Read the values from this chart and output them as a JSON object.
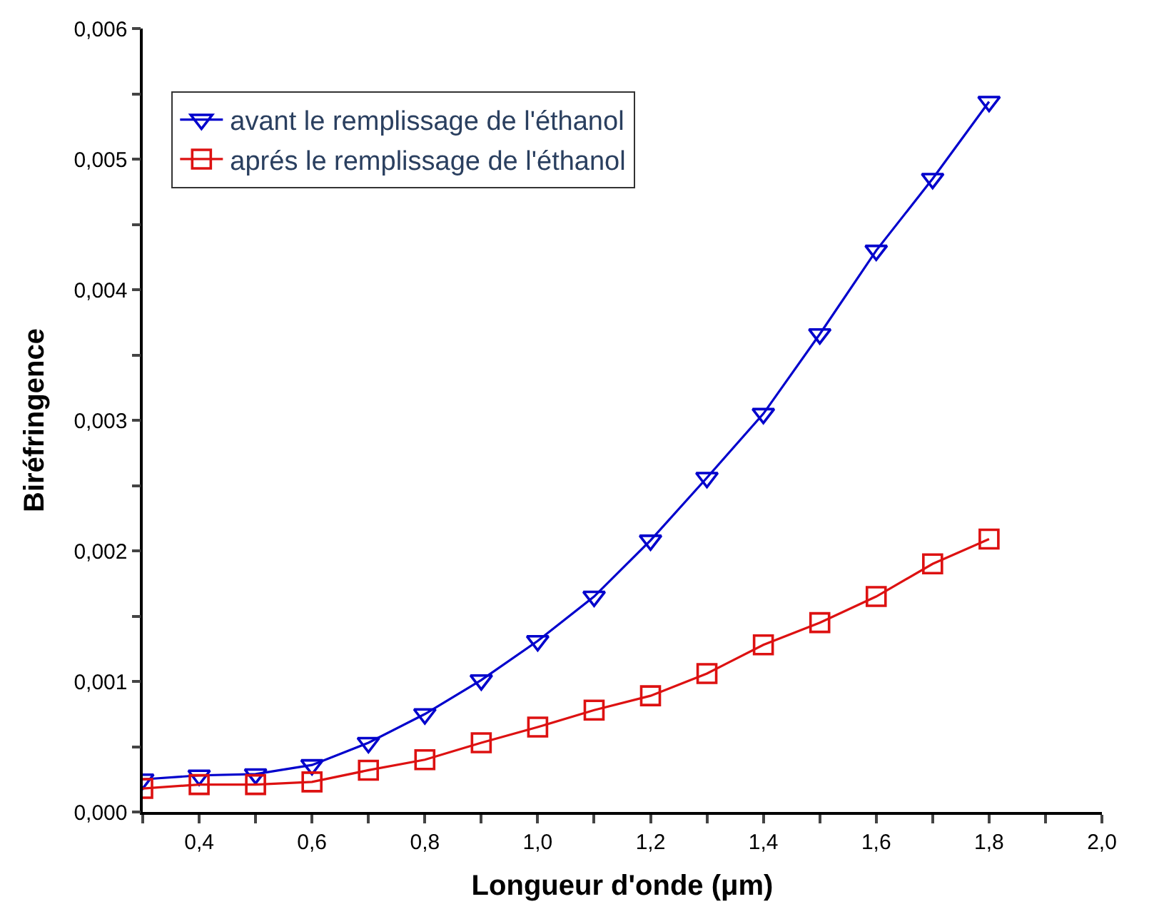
{
  "chart_data": {
    "type": "line",
    "xlabel": "Longueur d'onde (μm)",
    "ylabel": "Biréfringence",
    "x": [
      0.3,
      0.4,
      0.5,
      0.6,
      0.7,
      0.8,
      0.9,
      1.0,
      1.1,
      1.2,
      1.3,
      1.4,
      1.5,
      1.6,
      1.7,
      1.8
    ],
    "series": [
      {
        "name": "avant le remplissage de l'éthanol",
        "color": "#0000cc",
        "marker": "triangle",
        "values": [
          0.00025,
          0.00028,
          0.00029,
          0.00036,
          0.00053,
          0.00075,
          0.00101,
          0.00131,
          0.00165,
          0.00208,
          0.00256,
          0.00305,
          0.00366,
          0.0043,
          0.00485,
          0.00544
        ]
      },
      {
        "name": "aprés le remplissage de l'éthanol",
        "color": "#dd1111",
        "marker": "square",
        "values": [
          0.00018,
          0.00021,
          0.00021,
          0.00023,
          0.00032,
          0.0004,
          0.00053,
          0.00065,
          0.00078,
          0.00089,
          0.00106,
          0.00128,
          0.00145,
          0.00165,
          0.0019,
          0.00209
        ]
      }
    ],
    "xlim": [
      0.3,
      2.0
    ],
    "xticks": [
      {
        "value": 0.3,
        "label": null
      },
      {
        "value": 0.4,
        "label": "0,4"
      },
      {
        "value": 0.5,
        "label": null
      },
      {
        "value": 0.6,
        "label": "0,6"
      },
      {
        "value": 0.7,
        "label": null
      },
      {
        "value": 0.8,
        "label": "0,8"
      },
      {
        "value": 0.9,
        "label": null
      },
      {
        "value": 1.0,
        "label": "1,0"
      },
      {
        "value": 1.1,
        "label": null
      },
      {
        "value": 1.2,
        "label": "1,2"
      },
      {
        "value": 1.3,
        "label": null
      },
      {
        "value": 1.4,
        "label": "1,4"
      },
      {
        "value": 1.5,
        "label": null
      },
      {
        "value": 1.6,
        "label": "1,6"
      },
      {
        "value": 1.7,
        "label": null
      },
      {
        "value": 1.8,
        "label": "1,8"
      },
      {
        "value": 1.9,
        "label": null
      },
      {
        "value": 2.0,
        "label": "2,0"
      }
    ],
    "ylim": [
      0,
      0.006
    ],
    "yticks": [
      {
        "value": 0,
        "label": "0,000"
      },
      {
        "value": 0.0005,
        "label": null
      },
      {
        "value": 0.001,
        "label": "0,001"
      },
      {
        "value": 0.0015,
        "label": null
      },
      {
        "value": 0.002,
        "label": "0,002"
      },
      {
        "value": 0.0025,
        "label": null
      },
      {
        "value": 0.003,
        "label": "0,003"
      },
      {
        "value": 0.0035,
        "label": null
      },
      {
        "value": 0.004,
        "label": "0,004"
      },
      {
        "value": 0.0045,
        "label": null
      },
      {
        "value": 0.005,
        "label": "0,005"
      },
      {
        "value": 0.0055,
        "label": null
      },
      {
        "value": 0.006,
        "label": "0,006"
      }
    ],
    "legend": "top left",
    "line_style": "solid"
  }
}
